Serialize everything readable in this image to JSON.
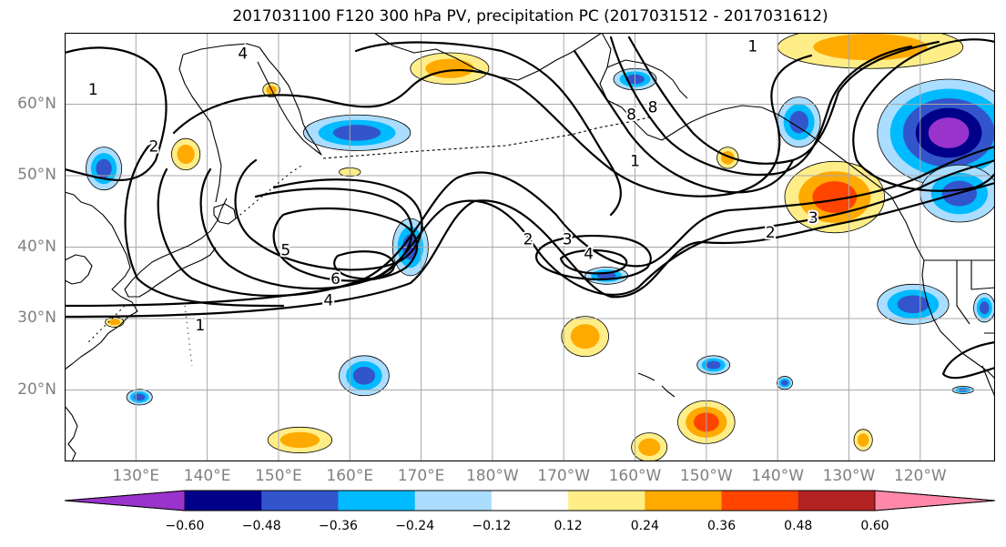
{
  "title": "2017031100 F120 300 hPa PV, precipitation PC (2017031512 - 2017031612)",
  "lat_labels": [
    {
      "text": "60°N",
      "lat": 60
    },
    {
      "text": "50°N",
      "lat": 50
    },
    {
      "text": "40°N",
      "lat": 40
    },
    {
      "text": "30°N",
      "lat": 30
    },
    {
      "text": "20°N",
      "lat": 20
    }
  ],
  "lon_labels": [
    {
      "text": "130°E",
      "lon": 130
    },
    {
      "text": "140°E",
      "lon": 140
    },
    {
      "text": "150°E",
      "lon": 150
    },
    {
      "text": "160°E",
      "lon": 160
    },
    {
      "text": "170°E",
      "lon": 170
    },
    {
      "text": "180°W",
      "lon": 180
    },
    {
      "text": "170°W",
      "lon": 190
    },
    {
      "text": "160°W",
      "lon": 200
    },
    {
      "text": "150°W",
      "lon": 210
    },
    {
      "text": "140°W",
      "lon": 220
    },
    {
      "text": "130°W",
      "lon": 230
    },
    {
      "text": "120°W",
      "lon": 240
    }
  ],
  "map_extent": {
    "lon_min": 120,
    "lon_max": 250.5,
    "lat_min": 10,
    "lat_max": 70
  },
  "colorbar": {
    "colors": [
      "#9933cc",
      "#000088",
      "#3355cc",
      "#00bbff",
      "#aaddff",
      "#ffffff",
      "#ffee88",
      "#ffaa00",
      "#ff4400",
      "#b22222",
      "#ff88aa"
    ],
    "tick_labels": [
      "−0.60",
      "−0.48",
      "−0.36",
      "−0.24",
      "−0.12",
      "0.12",
      "0.24",
      "0.36",
      "0.48",
      "0.60"
    ]
  },
  "contour_labels": [
    {
      "text": "1",
      "lon": 124,
      "lat": 62
    },
    {
      "text": "2",
      "lon": 132.5,
      "lat": 54
    },
    {
      "text": "4",
      "lon": 145,
      "lat": 67
    },
    {
      "text": "5",
      "lon": 151,
      "lat": 39.5
    },
    {
      "text": "6",
      "lon": 158,
      "lat": 35.5
    },
    {
      "text": "4",
      "lon": 157,
      "lat": 32.5
    },
    {
      "text": "1",
      "lon": 139,
      "lat": 29
    },
    {
      "text": "2",
      "lon": 185,
      "lat": 41
    },
    {
      "text": "3",
      "lon": 190.5,
      "lat": 41
    },
    {
      "text": "4",
      "lon": 193.5,
      "lat": 39
    },
    {
      "text": "1",
      "lon": 200,
      "lat": 52
    },
    {
      "text": "8",
      "lon": 199.5,
      "lat": 58.5
    },
    {
      "text": "8",
      "lon": 202.5,
      "lat": 59.5
    },
    {
      "text": "3",
      "lon": 225,
      "lat": 44
    },
    {
      "text": "2",
      "lon": 219,
      "lat": 42
    },
    {
      "text": "1",
      "lon": 216.5,
      "lat": 68
    }
  ],
  "precip_patches": [
    {
      "lon": 174,
      "lat": 65,
      "rx": 5.5,
      "ry": 2.2,
      "level": 2
    },
    {
      "lon": 137,
      "lat": 53,
      "rx": 2.0,
      "ry": 2.2,
      "level": 2
    },
    {
      "lon": 149,
      "lat": 62,
      "rx": 1.2,
      "ry": 1.0,
      "level": 2
    },
    {
      "lon": 160,
      "lat": 50.5,
      "rx": 1.5,
      "ry": 0.6,
      "level": 1
    },
    {
      "lon": 125.5,
      "lat": 51,
      "rx": 2.5,
      "ry": 3.0,
      "level": -3
    },
    {
      "lon": 161,
      "lat": 56,
      "rx": 7.5,
      "ry": 2.5,
      "level": -3
    },
    {
      "lon": 168.5,
      "lat": 40,
      "rx": 2.5,
      "ry": 4.0,
      "level": -3
    },
    {
      "lon": 196,
      "lat": 36,
      "rx": 3.0,
      "ry": 1.2,
      "level": -3
    },
    {
      "lon": 200,
      "lat": 63.5,
      "rx": 3.0,
      "ry": 1.5,
      "level": -3
    },
    {
      "lon": 213,
      "lat": 52.5,
      "rx": 1.5,
      "ry": 1.5,
      "level": 2
    },
    {
      "lon": 223,
      "lat": 57.5,
      "rx": 3.0,
      "ry": 3.5,
      "level": -3
    },
    {
      "lon": 228,
      "lat": 47,
      "rx": 7.0,
      "ry": 5.0,
      "level": 3
    },
    {
      "lon": 244,
      "lat": 56,
      "rx": 10.0,
      "ry": 7.5,
      "level": -5
    },
    {
      "lon": 245.5,
      "lat": 47.5,
      "rx": 5.5,
      "ry": 4.0,
      "level": -3
    },
    {
      "lon": 233,
      "lat": 68,
      "rx": 13.0,
      "ry": 3.0,
      "level": 2
    },
    {
      "lon": 239,
      "lat": 32,
      "rx": 5.0,
      "ry": 2.8,
      "level": -3
    },
    {
      "lon": 193,
      "lat": 27.5,
      "rx": 3.3,
      "ry": 2.8,
      "level": 2
    },
    {
      "lon": 162,
      "lat": 22,
      "rx": 3.5,
      "ry": 2.8,
      "level": -3
    },
    {
      "lon": 210,
      "lat": 15.5,
      "rx": 4.0,
      "ry": 3.0,
      "level": 3
    },
    {
      "lon": 153,
      "lat": 13,
      "rx": 4.5,
      "ry": 1.8,
      "level": 2
    },
    {
      "lon": 211,
      "lat": 23.5,
      "rx": 2.3,
      "ry": 1.3,
      "level": -3
    },
    {
      "lon": 130.5,
      "lat": 19,
      "rx": 1.8,
      "ry": 1.1,
      "level": -3
    },
    {
      "lon": 127,
      "lat": 29.5,
      "rx": 1.3,
      "ry": 0.7,
      "level": 2
    },
    {
      "lon": 232,
      "lat": 13,
      "rx": 1.3,
      "ry": 1.5,
      "level": 2
    },
    {
      "lon": 202,
      "lat": 12,
      "rx": 2.5,
      "ry": 2.0,
      "level": 2
    },
    {
      "lon": 221,
      "lat": 21,
      "rx": 1.1,
      "ry": 0.9,
      "level": -3
    },
    {
      "lon": 249,
      "lat": 31.5,
      "rx": 1.5,
      "ry": 2.0,
      "level": -3
    },
    {
      "lon": 246,
      "lat": 20,
      "rx": 1.5,
      "ry": 0.5,
      "level": -3
    }
  ]
}
